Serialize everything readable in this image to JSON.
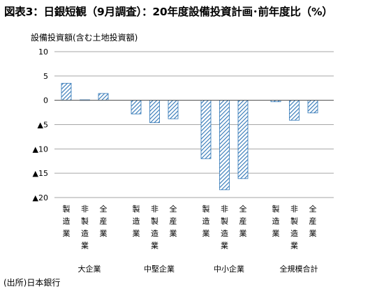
{
  "chart_data": {
    "type": "bar",
    "title": "図表3：日銀短観（9月調査）：20年度設備投資計画･前年度比（%）",
    "ylabel": "設備投資額(含む土地投資額)",
    "xlabel": "",
    "ylim": [
      -20,
      10
    ],
    "yticks": [
      {
        "value": 10,
        "label": "10"
      },
      {
        "value": 5,
        "label": "5"
      },
      {
        "value": 0,
        "label": "0"
      },
      {
        "value": -5,
        "label": "▲5"
      },
      {
        "value": -10,
        "label": "▲10"
      },
      {
        "value": -15,
        "label": "▲15"
      },
      {
        "value": -20,
        "label": "▲20"
      }
    ],
    "grid": true,
    "legend": "none",
    "bar_color": "#2e75b6",
    "groups": [
      {
        "name": "大企業",
        "bars": [
          {
            "category": "製造業",
            "value": 3.5
          },
          {
            "category": "非製造業",
            "value": 0.1
          },
          {
            "category": "全産業",
            "value": 1.4
          }
        ]
      },
      {
        "name": "中堅企業",
        "bars": [
          {
            "category": "製造業",
            "value": -2.8
          },
          {
            "category": "非製造業",
            "value": -4.6
          },
          {
            "category": "全産業",
            "value": -3.8
          }
        ]
      },
      {
        "name": "中小企業",
        "bars": [
          {
            "category": "製造業",
            "value": -12.0
          },
          {
            "category": "非製造業",
            "value": -18.4
          },
          {
            "category": "全産業",
            "value": -16.1
          }
        ]
      },
      {
        "name": "全規模合計",
        "bars": [
          {
            "category": "製造業",
            "value": -0.3
          },
          {
            "category": "非製造業",
            "value": -4.1
          },
          {
            "category": "全産業",
            "value": -2.6
          }
        ]
      }
    ]
  },
  "source": "(出所)日本銀行"
}
